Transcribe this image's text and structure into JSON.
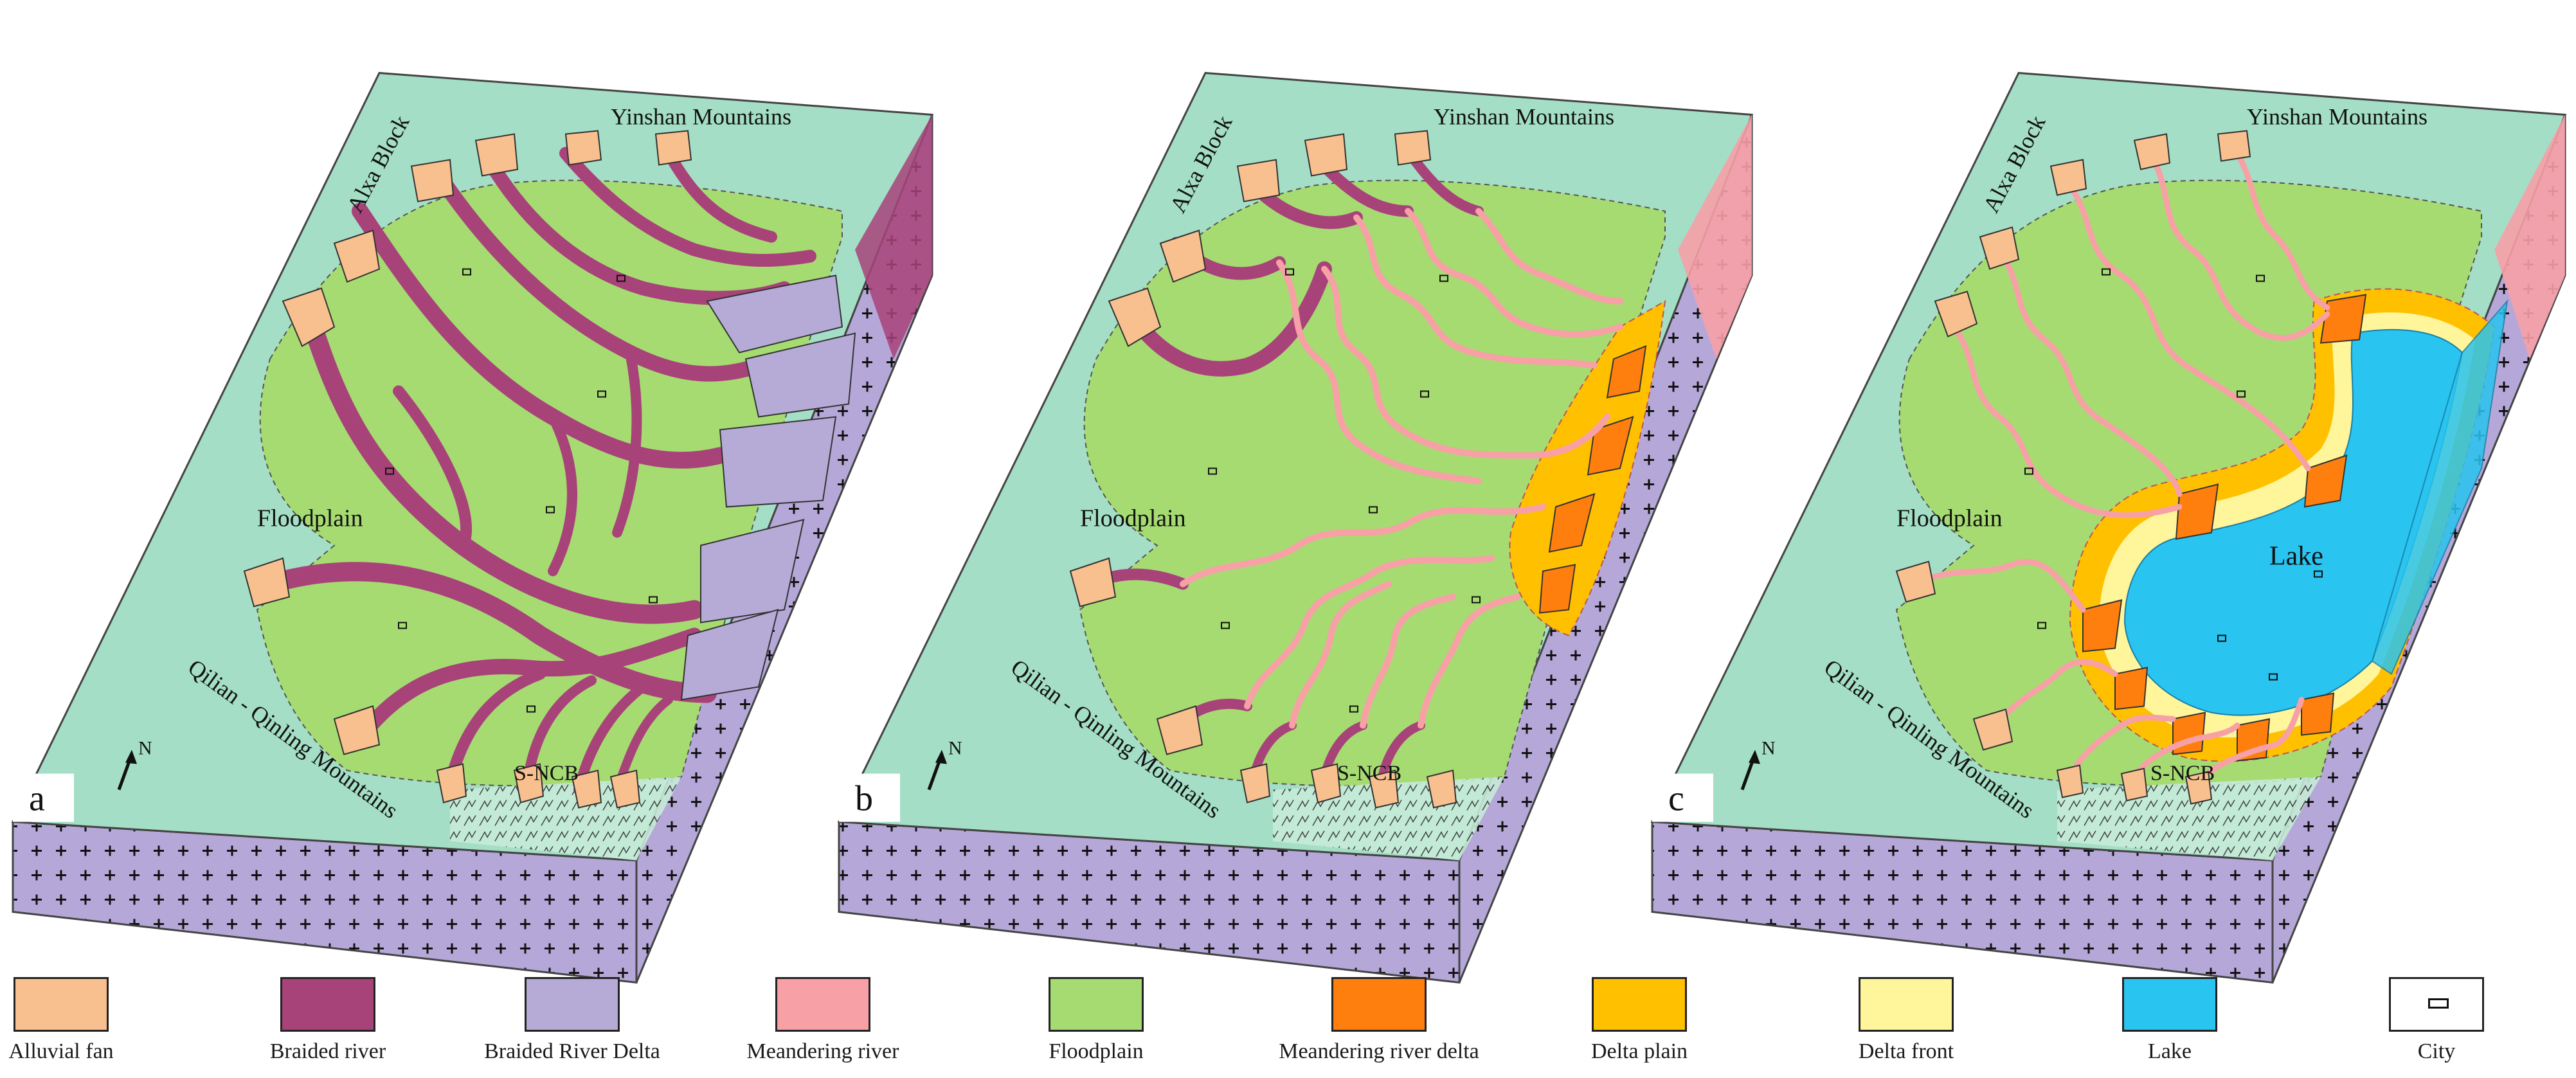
{
  "panels": [
    {
      "letter": "a",
      "north": "N",
      "labels": {
        "alxa": "Alxa Block",
        "yinshan": "Yinshan Mountains",
        "floodplain": "Floodplain",
        "qilian": "Qilian - Qinling Mountains",
        "sncb": "S-NCB"
      }
    },
    {
      "letter": "b",
      "north": "N",
      "labels": {
        "alxa": "Alxa Block",
        "yinshan": "Yinshan Mountains",
        "floodplain": "Floodplain",
        "qilian": "Qilian - Qinling Mountains",
        "sncb": "S-NCB"
      }
    },
    {
      "letter": "c",
      "north": "N",
      "labels": {
        "alxa": "Alxa Block",
        "yinshan": "Yinshan Mountains",
        "floodplain": "Floodplain",
        "qilian": "Qilian - Qinling Mountains",
        "sncb": "S-NCB",
        "lake": "Lake"
      }
    }
  ],
  "legend": [
    {
      "key": "alluvial-fan",
      "label": "Alluvial fan",
      "color": "#f9c08f"
    },
    {
      "key": "braided-river",
      "label": "Braided river",
      "color": "#a8437a"
    },
    {
      "key": "braided-river-delta",
      "label": "Braided River Delta",
      "color": "#b6abd6"
    },
    {
      "key": "meandering-river",
      "label": "Meandering river",
      "color": "#f7a0a6"
    },
    {
      "key": "floodplain",
      "label": "Floodplain",
      "color": "#a6db72"
    },
    {
      "key": "meandering-river-delta",
      "label": "Meandering river delta",
      "color": "#ff7f0e"
    },
    {
      "key": "delta-plain",
      "label": "Delta plain",
      "color": "#ffc000"
    },
    {
      "key": "delta-front",
      "label": "Delta front",
      "color": "#fff59a"
    },
    {
      "key": "lake",
      "label": "Lake",
      "color": "#29c4ef"
    },
    {
      "key": "city",
      "label": "City",
      "color": "#ffffff"
    }
  ],
  "colors": {
    "mountain": "#a4dec6",
    "mountain_light": "#c6ebd8",
    "basement": "#b5a8d8",
    "side_outline": "#444444"
  }
}
